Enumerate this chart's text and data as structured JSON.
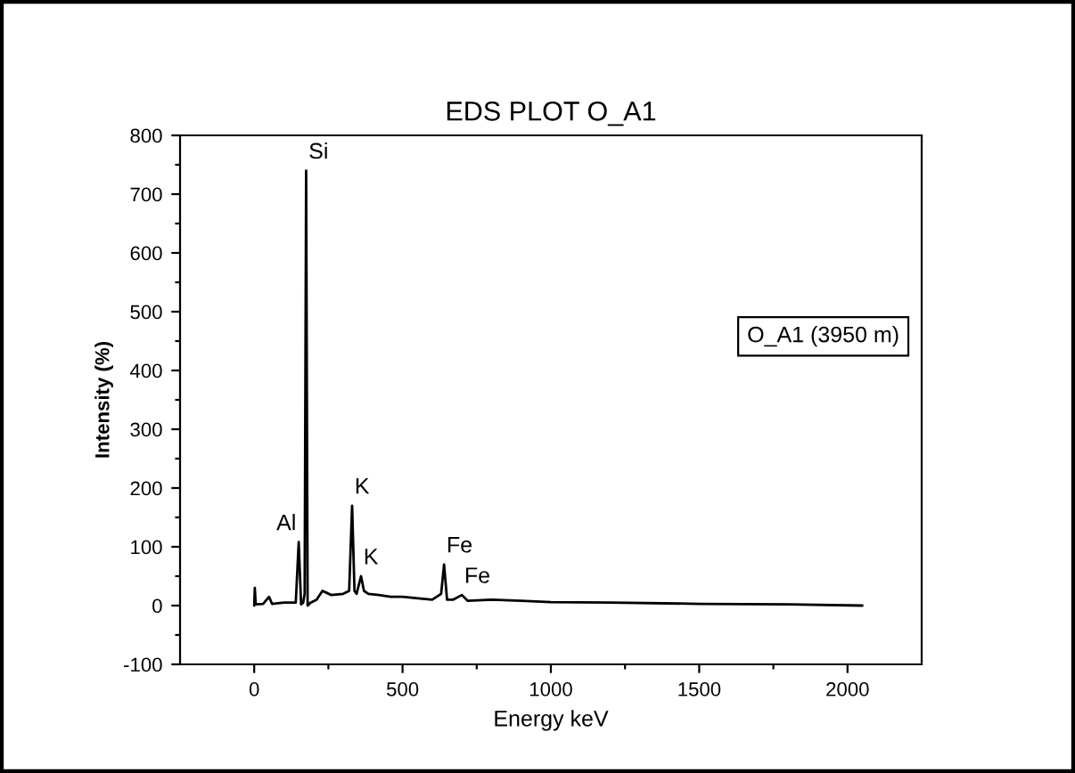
{
  "chart_data": {
    "type": "line",
    "title": "EDS PLOT O_A1",
    "xlabel": "Energy keV",
    "ylabel": "Intensity (%)",
    "x": [
      0,
      2,
      5,
      30,
      50,
      60,
      100,
      140,
      150,
      158,
      165,
      170,
      175,
      180,
      190,
      210,
      230,
      260,
      300,
      320,
      330,
      338,
      345,
      360,
      370,
      385,
      420,
      460,
      500,
      560,
      600,
      630,
      640,
      650,
      670,
      700,
      720,
      800,
      900,
      1000,
      1200,
      1500,
      1800,
      2050
    ],
    "series": [
      {
        "color": "#000000",
        "values": [
          0,
          30,
          2,
          3,
          15,
          3,
          5,
          5,
          108,
          2,
          5,
          20,
          740,
          0,
          5,
          10,
          25,
          18,
          20,
          25,
          170,
          25,
          20,
          50,
          25,
          20,
          18,
          15,
          15,
          12,
          10,
          20,
          70,
          10,
          10,
          18,
          8,
          10,
          8,
          6,
          5,
          3,
          2,
          0
        ]
      }
    ],
    "xlim": [
      -250,
      2250
    ],
    "ylim": [
      -100,
      800
    ],
    "xticks": [
      0,
      {
        "value": 250,
        "label": null
      },
      500,
      {
        "value": 750,
        "label": null
      },
      1000,
      {
        "value": 1250,
        "label": null
      },
      1500,
      {
        "value": 1750,
        "label": null
      },
      2000
    ],
    "yticks": [
      -100,
      {
        "value": -50,
        "label": null
      },
      0,
      {
        "value": 50,
        "label": null
      },
      100,
      {
        "value": 150,
        "label": null
      },
      200,
      {
        "value": 250,
        "label": null
      },
      300,
      {
        "value": 350,
        "label": null
      },
      400,
      {
        "value": 450,
        "label": null
      },
      500,
      {
        "value": 550,
        "label": null
      },
      600,
      {
        "value": 650,
        "label": null
      },
      700,
      {
        "value": 750,
        "label": null
      },
      800
    ],
    "annotations": [
      {
        "text": "Si",
        "x": 175,
        "y": 740
      },
      {
        "text": "Al",
        "x": 150,
        "y": 108
      },
      {
        "text": "K",
        "x": 330,
        "y": 170
      },
      {
        "text": "K",
        "x": 360,
        "y": 50
      },
      {
        "text": "Fe",
        "x": 640,
        "y": 70
      },
      {
        "text": "Fe",
        "x": 700,
        "y": 18
      },
      "O_A1 (3950 m)"
    ],
    "grid": false,
    "legend": false
  }
}
